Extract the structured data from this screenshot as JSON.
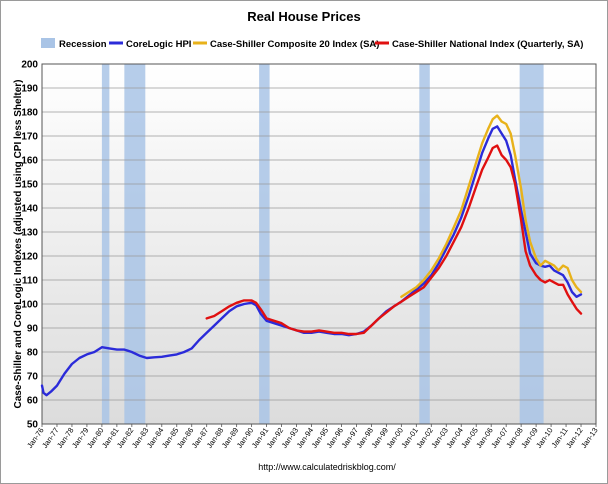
{
  "chart_data": {
    "type": "line",
    "title": "Real House Prices",
    "xlabel": "",
    "ylabel": "Case-Shiller and CoreLogic Indexes (adjusted using CPI less Shelter)",
    "source": "http://www.calculatedriskblog.com/",
    "ylim": [
      50,
      200
    ],
    "yticks": [
      50,
      60,
      70,
      80,
      90,
      100,
      110,
      120,
      130,
      140,
      150,
      160,
      170,
      180,
      190,
      200
    ],
    "xlim": [
      1976,
      2013
    ],
    "xtick_labels": [
      "Jan-76",
      "Jan-77",
      "Jan-78",
      "Jan-79",
      "Jan-80",
      "Jan-81",
      "Jan-82",
      "Jan-83",
      "Jan-84",
      "Jan-85",
      "Jan-86",
      "Jan-87",
      "Jan-88",
      "Jan-89",
      "Jan-90",
      "Jan-91",
      "Jan-92",
      "Jan-93",
      "Jan-94",
      "Jan-95",
      "Jan-96",
      "Jan-97",
      "Jan-98",
      "Jan-99",
      "Jan-00",
      "Jan-01",
      "Jan-02",
      "Jan-03",
      "Jan-04",
      "Jan-05",
      "Jan-06",
      "Jan-07",
      "Jan-08",
      "Jan-09",
      "Jan-10",
      "Jan-11",
      "Jan-12",
      "Jan-13"
    ],
    "grid": true,
    "legend_position": "top",
    "recessions": [
      [
        1980.0,
        1980.5
      ],
      [
        1981.5,
        1982.9
      ],
      [
        1990.5,
        1991.2
      ],
      [
        2001.2,
        2001.9
      ],
      [
        2007.9,
        2009.5
      ]
    ],
    "series": [
      {
        "name": "Recession",
        "kind": "band",
        "color": "#a9c4e6"
      },
      {
        "name": "CoreLogic HPI",
        "kind": "line",
        "color": "#2b2bd9",
        "x": [
          1976.0,
          1976.1,
          1976.3,
          1976.6,
          1977.0,
          1977.5,
          1978.0,
          1978.5,
          1979.0,
          1979.5,
          1980.0,
          1980.5,
          1981.0,
          1981.5,
          1982.0,
          1982.5,
          1983.0,
          1983.5,
          1984.0,
          1984.5,
          1985.0,
          1985.5,
          1986.0,
          1986.5,
          1987.0,
          1987.5,
          1988.0,
          1988.5,
          1989.0,
          1989.5,
          1990.0,
          1990.3,
          1990.6,
          1991.0,
          1991.5,
          1992.0,
          1992.5,
          1993.0,
          1993.5,
          1994.0,
          1994.5,
          1995.0,
          1995.5,
          1996.0,
          1996.5,
          1997.0,
          1997.5,
          1998.0,
          1998.5,
          1999.0,
          1999.5,
          2000.0,
          2000.5,
          2001.0,
          2001.5,
          2002.0,
          2002.5,
          2003.0,
          2003.5,
          2004.0,
          2004.5,
          2005.0,
          2005.4,
          2005.8,
          2006.1,
          2006.4,
          2006.7,
          2007.0,
          2007.3,
          2007.6,
          2008.0,
          2008.3,
          2008.6,
          2009.0,
          2009.3,
          2009.6,
          2009.9,
          2010.2,
          2010.5,
          2010.8,
          2011.1,
          2011.4,
          2011.7,
          2012.0
        ],
        "values": [
          66,
          63,
          62,
          63.5,
          66,
          71,
          75,
          77.5,
          79,
          80,
          82,
          81.5,
          81,
          81,
          80,
          78.5,
          77.5,
          77.8,
          78,
          78.5,
          79,
          80,
          81.5,
          85,
          88,
          91,
          94,
          97,
          99,
          100,
          100.5,
          99.5,
          96,
          93,
          92,
          91,
          90,
          89,
          88,
          88,
          88.5,
          88,
          87.5,
          87.5,
          87,
          87.5,
          88.5,
          91,
          94,
          97,
          99,
          101,
          103.5,
          106,
          108.5,
          112,
          117,
          123,
          129,
          136,
          145,
          155,
          163,
          169,
          173,
          174,
          171,
          168,
          162,
          152,
          139,
          130,
          121,
          117,
          116,
          115.5,
          116,
          114,
          113,
          112,
          109,
          105,
          103,
          104
        ]
      },
      {
        "name": "Case-Shiller Composite 20 Index (SA)",
        "kind": "line",
        "color": "#e8b21a",
        "x": [
          2000.0,
          2000.5,
          2001.0,
          2001.5,
          2002.0,
          2002.5,
          2003.0,
          2003.5,
          2004.0,
          2004.5,
          2005.0,
          2005.4,
          2005.8,
          2006.1,
          2006.4,
          2006.7,
          2007.0,
          2007.3,
          2007.6,
          2008.0,
          2008.3,
          2008.6,
          2009.0,
          2009.3,
          2009.6,
          2009.9,
          2010.2,
          2010.5,
          2010.8,
          2011.1,
          2011.4,
          2011.7,
          2012.0
        ],
        "values": [
          103,
          105,
          107,
          110,
          114,
          119,
          125,
          132,
          139,
          149,
          159,
          167,
          173,
          177,
          178.5,
          176,
          175,
          171,
          162,
          148,
          135,
          126,
          119,
          116,
          118,
          117,
          116,
          114,
          116,
          115,
          110,
          107,
          105
        ]
      },
      {
        "name": "Case-Shiller National Index (Quarterly, SA)",
        "kind": "line",
        "color": "#e01010",
        "x": [
          1987.0,
          1987.5,
          1988.0,
          1988.5,
          1989.0,
          1989.5,
          1990.0,
          1990.3,
          1990.7,
          1991.0,
          1991.5,
          1992.0,
          1992.5,
          1993.0,
          1993.5,
          1994.0,
          1994.5,
          1995.0,
          1995.5,
          1996.0,
          1996.5,
          1997.0,
          1997.5,
          1998.0,
          1998.5,
          1999.0,
          1999.5,
          2000.0,
          2000.5,
          2001.0,
          2001.5,
          2002.0,
          2002.5,
          2003.0,
          2003.5,
          2004.0,
          2004.5,
          2005.0,
          2005.4,
          2005.8,
          2006.1,
          2006.4,
          2006.7,
          2007.0,
          2007.3,
          2007.6,
          2008.0,
          2008.3,
          2008.6,
          2009.0,
          2009.3,
          2009.6,
          2009.9,
          2010.2,
          2010.5,
          2010.8,
          2011.1,
          2011.4,
          2011.7,
          2012.0
        ],
        "values": [
          94,
          95,
          97,
          99,
          100.5,
          101.5,
          101.5,
          100.5,
          97,
          94,
          93,
          92,
          90,
          89,
          88.5,
          88.5,
          89,
          88.5,
          88,
          88,
          87.5,
          87.5,
          88,
          91,
          94,
          96.5,
          99,
          101,
          103,
          105,
          107,
          111,
          115,
          120,
          126,
          132,
          140,
          149,
          156,
          161,
          165,
          166,
          162,
          160,
          157,
          150,
          135,
          122,
          116,
          112,
          110,
          109,
          110,
          109,
          108,
          108,
          104,
          101,
          98,
          96
        ]
      }
    ]
  }
}
